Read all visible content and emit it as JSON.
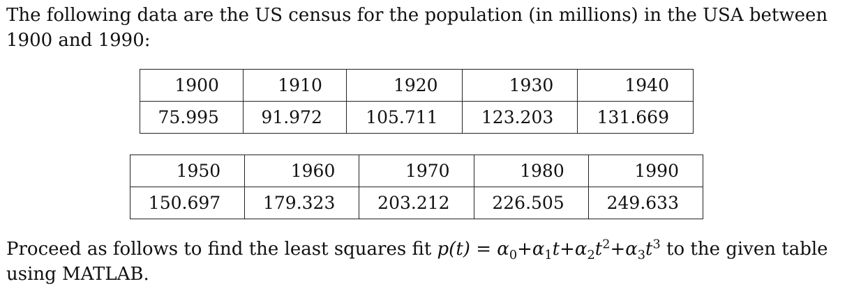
{
  "intro_line1": "The following data are the US census for the population (in millions) in the USA between",
  "intro_line2": "1900 and 1990:",
  "table1": {
    "years": [
      "1900",
      "1910",
      "1920",
      "1930",
      "1940"
    ],
    "populations": [
      "75.995",
      "91.972",
      "105.711",
      "123.203",
      "131.669"
    ]
  },
  "table2": {
    "years": [
      "1950",
      "1960",
      "1970",
      "1980",
      "1990"
    ],
    "populations": [
      "150.697",
      "179.323",
      "203.212",
      "226.505",
      "249.633"
    ]
  },
  "outro": {
    "prefix": "Proceed as follows to find the least squares fit",
    "formula": {
      "lhs": "p(t)",
      "equals": "=",
      "a0": "α",
      "a0_sub": "0",
      "plus1": "+",
      "a1": "α",
      "a1_sub": "1",
      "t1": "t",
      "plus2": "+",
      "a2": "α",
      "a2_sub": "2",
      "t2": "t",
      "t2_sup": "2",
      "plus3": "+",
      "a3": "α",
      "a3_sub": "3",
      "t3": "t",
      "t3_sup": "3"
    },
    "suffix": "to the given table",
    "line2": "using MATLAB."
  }
}
